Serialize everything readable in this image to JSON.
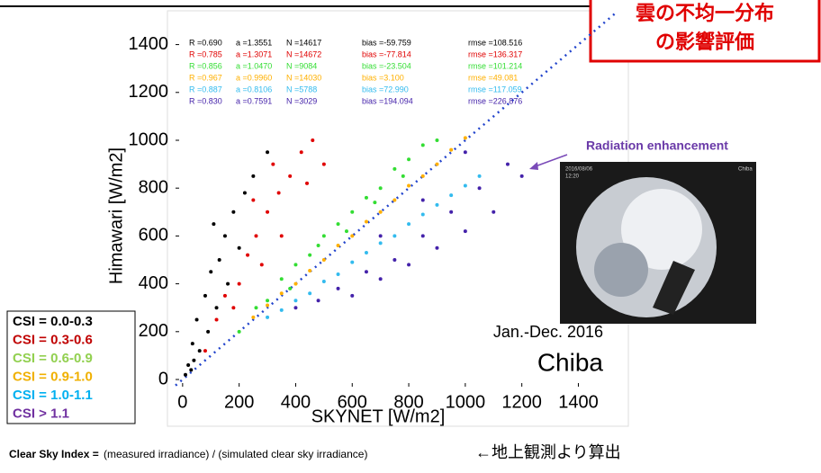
{
  "banner": {
    "line1": "雲の不均一分布",
    "line2": "の影響評価"
  },
  "chart_data": {
    "type": "scatter",
    "x_label": "SKYNET [W/m2]",
    "y_label": "Himawari [W/m2]",
    "xlim": [
      -25,
      1545
    ],
    "ylim": [
      -30,
      1530
    ],
    "xticks": [
      0,
      200,
      400,
      600,
      800,
      1000,
      1200,
      1400
    ],
    "yticks": [
      0,
      200,
      400,
      600,
      800,
      1000,
      1200,
      1400
    ],
    "annotations": {
      "period": "Jan.-Dec. 2016",
      "site": "Chiba",
      "enhancement": "Radiation enhancement"
    },
    "photo": {
      "date": "2016/08/06",
      "time": "12:20",
      "place": "Chiba"
    },
    "series": [
      {
        "name": "CSI = 0.0-0.3",
        "color": "#000000",
        "legend_color": "#000000",
        "stats": [
          "R =0.690",
          "a =1.3551",
          "N =14617",
          "bias =-59.759",
          "rmse =108.516"
        ],
        "x": [
          10,
          20,
          35,
          50,
          60,
          80,
          100,
          120,
          150,
          180,
          200,
          250,
          300,
          90,
          40,
          130,
          220,
          30,
          160,
          110
        ],
        "y": [
          20,
          60,
          150,
          250,
          120,
          350,
          450,
          300,
          600,
          700,
          550,
          850,
          950,
          200,
          80,
          500,
          780,
          40,
          400,
          650
        ]
      },
      {
        "name": "CSI = 0.3-0.6",
        "color": "#e00000",
        "legend_color": "#c00000",
        "stats": [
          "R =0.785",
          "a =1.3071",
          "N =14672",
          "bias =-77.814",
          "rmse =136.317"
        ],
        "x": [
          80,
          120,
          150,
          200,
          230,
          260,
          300,
          340,
          380,
          420,
          460,
          500,
          180,
          280,
          350,
          440,
          250,
          320
        ],
        "y": [
          120,
          250,
          350,
          400,
          520,
          600,
          700,
          780,
          850,
          950,
          1000,
          900,
          300,
          480,
          600,
          820,
          750,
          900
        ]
      },
      {
        "name": "CSI = 0.6-0.9",
        "color": "#33dd33",
        "legend_color": "#92d050",
        "stats": [
          "R =0.856",
          "a =1.0470",
          "N =9084",
          "bias =-23.504",
          "rmse =101.214"
        ],
        "x": [
          200,
          260,
          300,
          350,
          400,
          450,
          500,
          550,
          600,
          650,
          700,
          750,
          800,
          850,
          900,
          380,
          480,
          580,
          680,
          780
        ],
        "y": [
          200,
          300,
          330,
          420,
          480,
          520,
          600,
          650,
          700,
          760,
          800,
          880,
          920,
          980,
          1000,
          380,
          560,
          620,
          740,
          850
        ]
      },
      {
        "name": "CSI = 0.9-1.0",
        "color": "#ffb000",
        "legend_color": "#f0b000",
        "stats": [
          "R =0.967",
          "a =0.9960",
          "N =14030",
          "bias =3.100",
          "rmse =49.081"
        ],
        "x": [
          250,
          300,
          350,
          400,
          450,
          500,
          550,
          600,
          650,
          700,
          750,
          800,
          850,
          900,
          950,
          1000
        ],
        "y": [
          260,
          310,
          360,
          400,
          455,
          500,
          560,
          600,
          660,
          700,
          750,
          810,
          850,
          900,
          960,
          1010
        ]
      },
      {
        "name": "CSI = 1.0-1.1",
        "color": "#33bbee",
        "legend_color": "#00b0f0",
        "stats": [
          "R =0.887",
          "a =0.8106",
          "N =5788",
          "bias =72.990",
          "rmse =117.059"
        ],
        "x": [
          300,
          350,
          400,
          450,
          500,
          550,
          600,
          650,
          700,
          750,
          800,
          850,
          900,
          950,
          1000,
          1050
        ],
        "y": [
          260,
          290,
          330,
          360,
          410,
          440,
          490,
          530,
          570,
          600,
          650,
          690,
          730,
          770,
          810,
          850
        ]
      },
      {
        "name": "CSI > 1.1",
        "color": "#4422aa",
        "legend_color": "#7030a0",
        "stats": [
          "R =0.830",
          "a =0.7591",
          "N =3029",
          "bias =194.094",
          "rmse =226.876"
        ],
        "x": [
          400,
          480,
          550,
          600,
          650,
          700,
          750,
          800,
          850,
          900,
          950,
          1000,
          1050,
          1100,
          1150,
          1200,
          700,
          850,
          1000
        ],
        "y": [
          300,
          330,
          380,
          350,
          450,
          420,
          500,
          480,
          600,
          550,
          700,
          620,
          800,
          700,
          900,
          850,
          600,
          750,
          950
        ]
      }
    ]
  },
  "footer": {
    "definition_label": "Clear Sky Index =",
    "definition": " (measured irradiance) / (simulated clear sky irradiance)",
    "note": "←地上観測より算出"
  }
}
